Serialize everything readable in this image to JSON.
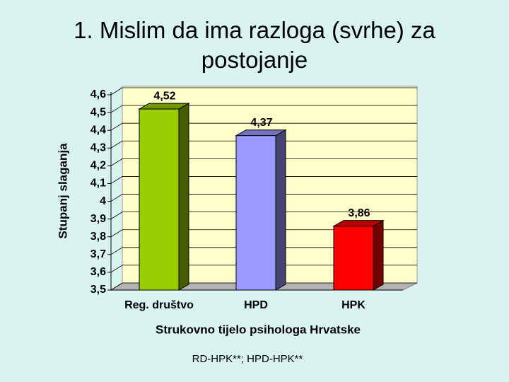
{
  "chart_data": {
    "type": "bar3d",
    "title": "1. Mislim da ima razloga (svrhe) za postojanje",
    "y_label": "Stupanj slaganja",
    "x_label": "Strukovno tijelo psihologa Hrvatske",
    "annotation": "RD-HPK**; HPD-HPK**",
    "categories": [
      "Reg. društvo",
      "HPD",
      "HPK"
    ],
    "values": [
      4.52,
      4.37,
      3.86
    ],
    "value_labels": [
      "4,52",
      "4,37",
      "3,86"
    ],
    "colors": [
      "#99cc00",
      "#9999ff",
      "#ff0000"
    ],
    "ylim": [
      3.5,
      4.6
    ],
    "yticks": [
      {
        "value": 3.5,
        "label": "3,5"
      },
      {
        "value": 3.6,
        "label": "3,6"
      },
      {
        "value": 3.7,
        "label": "3,7"
      },
      {
        "value": 3.8,
        "label": "3,8"
      },
      {
        "value": 3.9,
        "label": "3,9"
      },
      4,
      {
        "value": 4.1,
        "label": "4,1"
      },
      {
        "value": 4.2,
        "label": "4,2"
      },
      {
        "value": 4.3,
        "label": "4,3"
      },
      {
        "value": 4.4,
        "label": "4,4"
      },
      {
        "value": 4.5,
        "label": "4,5"
      },
      {
        "value": 4.6,
        "label": "4,6"
      }
    ],
    "grid": true
  }
}
